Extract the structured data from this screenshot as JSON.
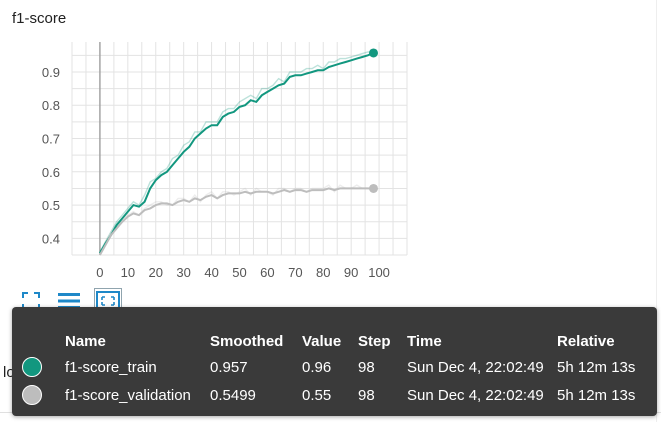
{
  "card": {
    "title": "f1-score",
    "next_title": "loss"
  },
  "toolbar": {
    "fullscreen_icon": "fullscreen-icon",
    "log_icon": "list-icon",
    "fit_icon": "fit-domain-icon"
  },
  "colors": {
    "train": "#12977f",
    "validation": "#bdbdbd",
    "axis": "#9e9e9e",
    "grid": "#e3e3e3",
    "tooltip_bg": "#3a3a3a"
  },
  "chart_data": {
    "type": "line",
    "title": "f1-score",
    "xlabel": "",
    "ylabel": "",
    "xlim": [
      -10,
      110
    ],
    "ylim": [
      0.35,
      0.99
    ],
    "x_ticks": [
      0,
      10,
      20,
      30,
      40,
      50,
      60,
      70,
      80,
      90,
      100
    ],
    "y_ticks": [
      0.4,
      0.5,
      0.6,
      0.7,
      0.8,
      0.9
    ],
    "grid": true,
    "series": [
      {
        "name": "f1-score_train",
        "color": "#12977f",
        "x": [
          0,
          2,
          4,
          6,
          8,
          10,
          12,
          14,
          16,
          18,
          20,
          22,
          24,
          26,
          28,
          30,
          32,
          34,
          36,
          38,
          40,
          42,
          44,
          46,
          48,
          50,
          52,
          54,
          56,
          58,
          60,
          62,
          64,
          66,
          68,
          70,
          72,
          74,
          76,
          78,
          80,
          82,
          84,
          86,
          88,
          90,
          92,
          94,
          96,
          98
        ],
        "smoothed": [
          0.355,
          0.385,
          0.41,
          0.44,
          0.46,
          0.48,
          0.5,
          0.495,
          0.51,
          0.55,
          0.575,
          0.59,
          0.6,
          0.62,
          0.64,
          0.66,
          0.675,
          0.7,
          0.715,
          0.73,
          0.74,
          0.74,
          0.765,
          0.775,
          0.78,
          0.795,
          0.8,
          0.815,
          0.81,
          0.83,
          0.84,
          0.85,
          0.86,
          0.865,
          0.885,
          0.89,
          0.89,
          0.895,
          0.9,
          0.905,
          0.905,
          0.915,
          0.92,
          0.925,
          0.93,
          0.935,
          0.94,
          0.945,
          0.95,
          0.957
        ],
        "raw": [
          0.36,
          0.39,
          0.42,
          0.45,
          0.47,
          0.49,
          0.51,
          0.5,
          0.53,
          0.57,
          0.58,
          0.6,
          0.61,
          0.64,
          0.65,
          0.68,
          0.69,
          0.72,
          0.72,
          0.75,
          0.75,
          0.75,
          0.78,
          0.79,
          0.79,
          0.81,
          0.82,
          0.83,
          0.82,
          0.85,
          0.85,
          0.86,
          0.88,
          0.87,
          0.9,
          0.9,
          0.9,
          0.91,
          0.91,
          0.92,
          0.91,
          0.93,
          0.93,
          0.94,
          0.94,
          0.945,
          0.95,
          0.955,
          0.96,
          0.96
        ]
      },
      {
        "name": "f1-score_validation",
        "color": "#bdbdbd",
        "x": [
          0,
          2,
          4,
          6,
          8,
          10,
          12,
          14,
          16,
          18,
          20,
          22,
          24,
          26,
          28,
          30,
          32,
          34,
          36,
          38,
          40,
          42,
          44,
          46,
          48,
          50,
          52,
          54,
          56,
          58,
          60,
          62,
          64,
          66,
          68,
          70,
          72,
          74,
          76,
          78,
          80,
          82,
          84,
          86,
          88,
          90,
          92,
          94,
          96,
          98
        ],
        "smoothed": [
          0.35,
          0.38,
          0.41,
          0.43,
          0.45,
          0.465,
          0.475,
          0.47,
          0.485,
          0.49,
          0.5,
          0.505,
          0.505,
          0.5,
          0.51,
          0.515,
          0.51,
          0.52,
          0.515,
          0.525,
          0.53,
          0.52,
          0.53,
          0.535,
          0.535,
          0.535,
          0.54,
          0.535,
          0.54,
          0.54,
          0.54,
          0.535,
          0.54,
          0.545,
          0.54,
          0.545,
          0.545,
          0.54,
          0.545,
          0.545,
          0.545,
          0.55,
          0.545,
          0.55,
          0.55,
          0.55,
          0.55,
          0.55,
          0.55,
          0.5499
        ],
        "raw": [
          0.35,
          0.39,
          0.42,
          0.44,
          0.46,
          0.47,
          0.48,
          0.47,
          0.49,
          0.5,
          0.51,
          0.51,
          0.5,
          0.5,
          0.52,
          0.52,
          0.51,
          0.53,
          0.51,
          0.53,
          0.54,
          0.52,
          0.54,
          0.54,
          0.53,
          0.54,
          0.55,
          0.53,
          0.55,
          0.54,
          0.54,
          0.53,
          0.55,
          0.55,
          0.54,
          0.55,
          0.55,
          0.54,
          0.55,
          0.55,
          0.55,
          0.56,
          0.54,
          0.56,
          0.55,
          0.55,
          0.56,
          0.55,
          0.55,
          0.55
        ]
      }
    ],
    "highlight_step": 98
  },
  "tooltip": {
    "headers": {
      "name": "Name",
      "smoothed": "Smoothed",
      "value": "Value",
      "step": "Step",
      "time": "Time",
      "relative": "Relative"
    },
    "rows": [
      {
        "name": "f1-score_train",
        "smoothed": "0.957",
        "value": "0.96",
        "step": "98",
        "time": "Sun Dec 4, 22:02:49",
        "relative": "5h 12m 13s",
        "color": "#12977f"
      },
      {
        "name": "f1-score_validation",
        "smoothed": "0.5499",
        "value": "0.55",
        "step": "98",
        "time": "Sun Dec 4, 22:02:49",
        "relative": "5h 12m 13s",
        "color": "#bdbdbd"
      }
    ]
  }
}
